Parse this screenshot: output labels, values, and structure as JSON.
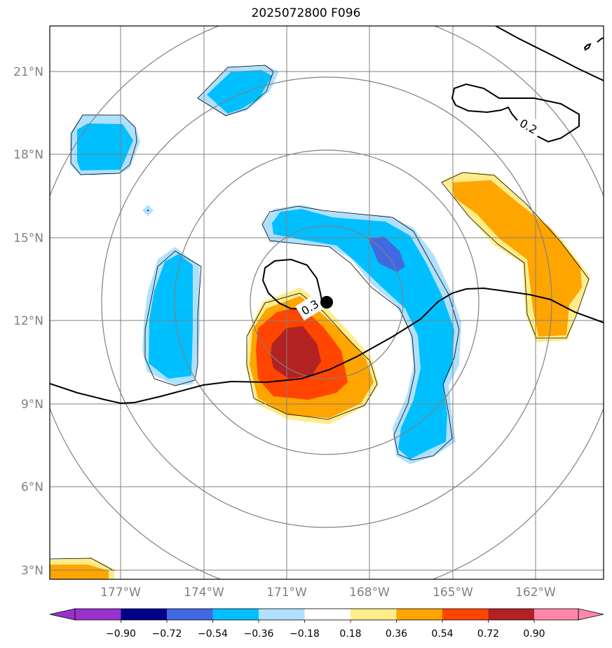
{
  "title": "2025072800 F096",
  "lat_labels": [
    "21°N",
    "18°N",
    "15°N",
    "12°N",
    "9°N",
    "6°N",
    "3°N"
  ],
  "lon_labels": [
    "177°W",
    "174°W",
    "171°W",
    "168°W",
    "165°W",
    "162°W"
  ],
  "contour_labels": [
    "0.2",
    "0.3"
  ],
  "colorbar": {
    "tick_labels": [
      "−0.90",
      "−0.72",
      "−0.54",
      "−0.36",
      "−0.18",
      "0.18",
      "0.36",
      "0.54",
      "0.72",
      "0.90"
    ],
    "colors": [
      "#9932cc",
      "#00008b",
      "#4169e1",
      "#00bfff",
      "#b0e0ff",
      "#ffffff",
      "#ffec8b",
      "#ffa500",
      "#ff4500",
      "#b22222",
      "#ff88aa"
    ]
  },
  "colors": {
    "grid": "#808080",
    "ring": "#808080",
    "contour": "#000000",
    "center_marker": "#000000"
  },
  "map": {
    "lon_range": [
      -179.5,
      -159.5
    ],
    "lat_range": [
      2.7,
      22.7
    ],
    "center": {
      "lon": -169.5,
      "lat": 12.6
    }
  }
}
